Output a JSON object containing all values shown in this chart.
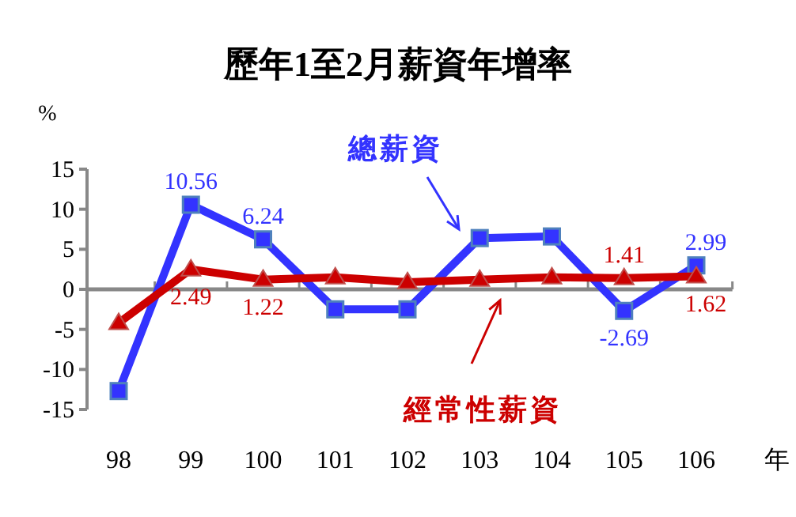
{
  "chart_data": {
    "type": "line",
    "title": "歷年1至2月薪資年增率",
    "ylabel": "%",
    "xlabel": "年",
    "categories": [
      "98",
      "99",
      "100",
      "101",
      "102",
      "103",
      "104",
      "105",
      "106"
    ],
    "ylim": [
      -15,
      15
    ],
    "yticks": [
      -15,
      -10,
      -5,
      0,
      5,
      10,
      15
    ],
    "series": [
      {
        "name": "總薪資",
        "color": "#3333ff",
        "marker": "square",
        "values": [
          -12.7,
          10.56,
          6.24,
          -2.5,
          -2.5,
          6.4,
          6.6,
          -2.69,
          2.99
        ],
        "value_labels": [
          null,
          "10.56",
          "6.24",
          null,
          null,
          null,
          null,
          "-2.69",
          "2.99"
        ]
      },
      {
        "name": "經常性薪資",
        "color": "#cc0000",
        "marker": "triangle",
        "values": [
          -4.2,
          2.49,
          1.22,
          1.5,
          0.9,
          1.2,
          1.5,
          1.41,
          1.62
        ],
        "value_labels": [
          null,
          "2.49",
          "1.22",
          null,
          null,
          null,
          null,
          "1.41",
          "1.62"
        ]
      }
    ]
  }
}
